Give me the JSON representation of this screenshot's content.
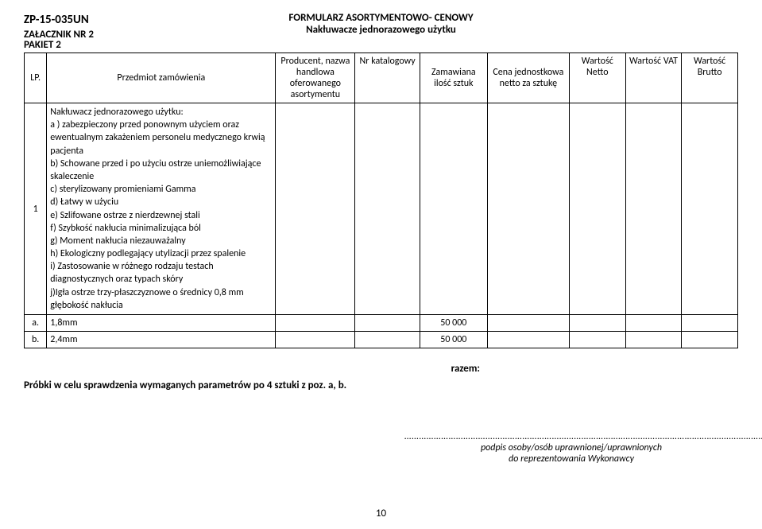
{
  "header": {
    "doc_code": "ZP-15-035UN",
    "attachment": "ZAŁACZNIK NR 2",
    "form_title": "FORMULARZ ASORTYMENTOWO- CENOWY",
    "form_subtitle": "Nakłuwacze jednorazowego użytku",
    "pakiet": "PAKIET 2"
  },
  "table": {
    "headers": {
      "lp": "LP.",
      "desc": "Przedmiot zamówienia",
      "producer": "Producent, nazwa handlowa oferowanego asortymentu",
      "catalog": "Nr katalogowy",
      "quantity": "Zamawiana ilość sztuk",
      "unit_price": "Cena jednostkowa netto za sztukę",
      "val_netto": "Wartość Netto",
      "val_vat": "Wartość VAT",
      "val_brutto": "Wartość Brutto"
    },
    "row1": {
      "lp": "1",
      "desc_lines": [
        "Nakłuwacz jednorazowego użytku:",
        "a ) zabezpieczony przed ponownym użyciem oraz ewentualnym zakażeniem personelu medycznego krwią pacjenta",
        "b) Schowane przed i po użyciu ostrze uniemożliwiające skaleczenie",
        "c) sterylizowany promieniami Gamma",
        "d) Łatwy w użyciu",
        "e) Szlifowane ostrze z nierdzewnej stali",
        "f) Szybkość nakłucia minimalizująca ból",
        "g) Moment nakłucia niezauważalny",
        "h) Ekologiczny podlegający utylizacji przez spalenie",
        "i)  Zastosowanie w różnego rodzaju testach diagnostycznych oraz typach skóry",
        "j)Igła ostrze trzy-płaszczyznowe o średnicy 0,8 mm głębokość nakłucia"
      ]
    },
    "row_a": {
      "lp": "a.",
      "desc": "1,8mm",
      "qty": "50 000"
    },
    "row_b": {
      "lp": "b.",
      "desc": "2,4mm",
      "qty": "50 000"
    }
  },
  "below": {
    "razem": "razem:",
    "probki": "Próbki w celu sprawdzenia wymaganych parametrów po 4 sztuki z poz. a, b."
  },
  "signature": {
    "dots": "…………………………………………………………………………………………………………………………………",
    "line1": "podpis osoby/osób uprawnionej/uprawnionych",
    "line2": "do reprezentowania Wykonawcy"
  },
  "page_number": "10"
}
